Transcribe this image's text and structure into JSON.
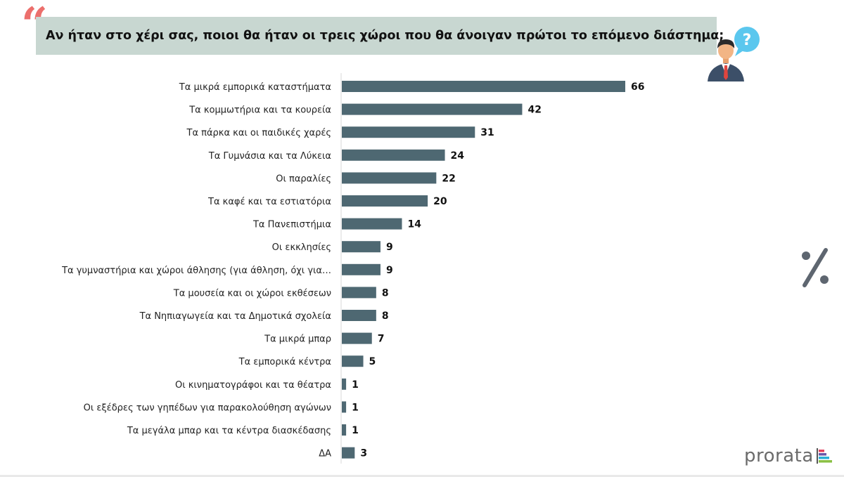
{
  "header": {
    "quote_mark": "“",
    "title": "Αν ήταν στο χέρι σας, ποιοι θα ήταν οι τρεις χώροι που θα άνοιγαν πρώτοι το επόμενο διάστημα;"
  },
  "icons": {
    "person": "person-question-icon",
    "percent": "percent-icon",
    "question": "?"
  },
  "brand": {
    "name": "prorata"
  },
  "colors": {
    "bar": "#4e6872",
    "title_bg": "#c8d7d1",
    "quote": "#ec6f6c",
    "percent": "#5e6670",
    "brand_bars": [
      "#e4405c",
      "#6a55a8",
      "#2ab0d8",
      "#8ac045"
    ]
  },
  "chart_data": {
    "type": "bar",
    "orientation": "horizontal",
    "categories": [
      "Τα μικρά εμπορικά καταστήματα",
      "Τα κομμωτήρια και τα κουρεία",
      "Τα πάρκα και οι παιδικές χαρές",
      "Τα Γυμνάσια και τα Λύκεια",
      "Οι παραλίες",
      "Τα καφέ και τα εστιατόρια",
      "Τα Πανεπιστήμια",
      "Οι εκκλησίες",
      "Τα γυμναστήρια και χώροι άθλησης (για άθληση, όχι για…",
      "Τα μουσεία και οι χώροι εκθέσεων",
      "Τα Νηπιαγωγεία και τα Δημοτικά σχολεία",
      "Τα μικρά μπαρ",
      "Τα εμπορικά κέντρα",
      "Οι κινηματογράφοι και τα θέατρα",
      "Οι εξέδρες των γηπέδων για παρακολούθηση αγώνων",
      "Τα μεγάλα μπαρ και τα κέντρα διασκέδασης",
      "ΔΑ"
    ],
    "values": [
      66,
      42,
      31,
      24,
      22,
      20,
      14,
      9,
      9,
      8,
      8,
      7,
      5,
      1,
      1,
      1,
      3
    ],
    "xlim": [
      0,
      66
    ],
    "grid": false,
    "legend": "none",
    "data_labels": true
  }
}
